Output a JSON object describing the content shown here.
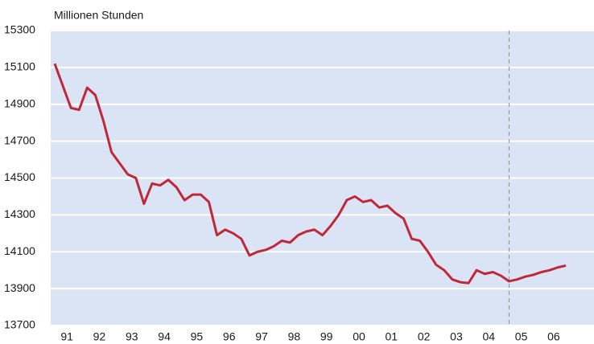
{
  "chart_data": {
    "type": "line",
    "y_label": "Millionen Stunden",
    "categories": [
      null,
      "91",
      null,
      null,
      null,
      "92",
      null,
      null,
      null,
      "93",
      null,
      null,
      null,
      "94",
      null,
      null,
      null,
      "95",
      null,
      null,
      null,
      "96",
      null,
      null,
      null,
      "97",
      null,
      null,
      null,
      "98",
      null,
      null,
      null,
      "99",
      null,
      null,
      null,
      "00",
      null,
      null,
      null,
      "01",
      null,
      null,
      null,
      "02",
      null,
      null,
      null,
      "03",
      null,
      null,
      null,
      "04",
      null,
      null,
      null,
      "05",
      null,
      null,
      null,
      "06",
      null,
      null
    ],
    "series": [
      {
        "name": null,
        "color": "#c0283a",
        "values": [
          15120,
          15000,
          14880,
          14870,
          14990,
          14950,
          14810,
          14640,
          14580,
          14520,
          14500,
          14360,
          14470,
          14460,
          14490,
          14450,
          14380,
          14410,
          14410,
          14370,
          14190,
          14220,
          14200,
          14170,
          14080,
          14100,
          14110,
          14130,
          14160,
          14150,
          14190,
          14210,
          14220,
          14190,
          14240,
          14300,
          14380,
          14400,
          14370,
          14380,
          14340,
          14350,
          14310,
          14280,
          14170,
          14160,
          14100,
          14030,
          14000,
          13950,
          13935,
          13930,
          14000,
          13980,
          13990,
          13970,
          13940,
          13950,
          13965,
          13975,
          13990,
          14000,
          14015,
          14025
        ]
      }
    ],
    "ylim": [
      13700,
      15300
    ],
    "yticks": [
      13700,
      13900,
      14100,
      14300,
      14500,
      14700,
      14900,
      15100,
      15300
    ],
    "grid": true,
    "background": "#dae4f4",
    "vline_index": 56
  }
}
